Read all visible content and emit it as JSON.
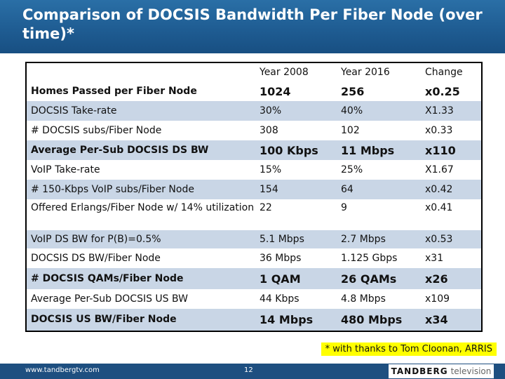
{
  "title": "Comparison of DOCSIS Bandwidth Per Fiber Node (over time)*",
  "table": {
    "headers": [
      "",
      "Year 2008",
      "Year 2016",
      "Change"
    ],
    "rows": [
      {
        "label": "Homes Passed per Fiber Node",
        "y2008": "1024",
        "y2016": "256",
        "change": "x0.25"
      },
      {
        "label": "DOCSIS Take-rate",
        "y2008": "30%",
        "y2016": "40%",
        "change": "X1.33"
      },
      {
        "label": "# DOCSIS subs/Fiber Node",
        "y2008": "308",
        "y2016": "102",
        "change": "x0.33"
      },
      {
        "label": "Average Per-Sub DOCSIS DS BW",
        "y2008": "100 Kbps",
        "y2016": "11 Mbps",
        "change": "x110"
      },
      {
        "label": "VoIP Take-rate",
        "y2008": "15%",
        "y2016": "25%",
        "change": "X1.67"
      },
      {
        "label": "# 150-Kbps VoIP subs/Fiber Node",
        "y2008": "154",
        "y2016": "64",
        "change": "x0.42"
      },
      {
        "label": "Offered Erlangs/Fiber Node w/ 14% utilization",
        "y2008": "22",
        "y2016": "9",
        "change": "x0.41"
      },
      {
        "label": "VoIP DS BW for P(B)=0.5%",
        "y2008": "5.1 Mbps",
        "y2016": "2.7 Mbps",
        "change": "x0.53"
      },
      {
        "label": "DOCSIS DS BW/Fiber Node",
        "y2008": "36 Mbps",
        "y2016": "1.125 Gbps",
        "change": "x31"
      },
      {
        "label": "# DOCSIS QAMs/Fiber Node",
        "y2008": "1 QAM",
        "y2016": "26 QAMs",
        "change": "x26"
      },
      {
        "label": "Average Per-Sub DOCSIS US BW",
        "y2008": "44 Kbps",
        "y2016": "4.8 Mbps",
        "change": "x109"
      },
      {
        "label": "DOCSIS US BW/Fiber Node",
        "y2008": "14 Mbps",
        "y2016": "480 Mbps",
        "change": "x34"
      }
    ]
  },
  "footnote": "* with thanks to Tom Cloonan, ARRIS",
  "footer": {
    "url": "www.tandbergtv.com",
    "page": "12",
    "logo_main": "TANDBERG",
    "logo_sub": "television"
  },
  "colors": {
    "title_bar": "#1e5b91",
    "row_stripe": "#c9d6e6",
    "footnote_bg": "#ffff00",
    "footer_bg": "#1e4f80"
  }
}
